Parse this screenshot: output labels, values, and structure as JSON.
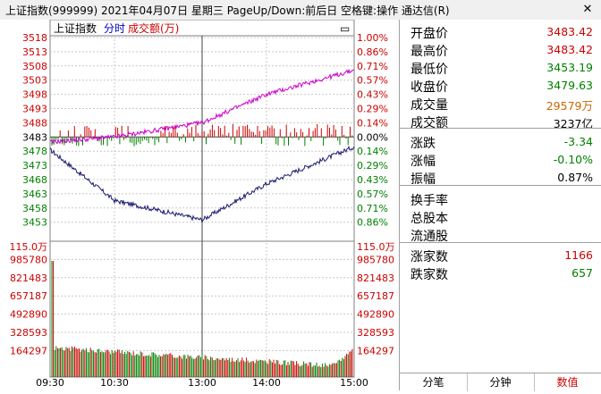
{
  "window": {
    "title": "上证指数(999999)  2021年04月07日 星期三 PageUp/Down:前后日 空格键:操作 通达信(R)",
    "close_label": "✕"
  },
  "chart": {
    "legend": {
      "index_name": "上证指数",
      "mode": "分时",
      "volume_label": "成交额(万)"
    },
    "legend_colors": {
      "index_name": "#000000",
      "mode": "#0000cc",
      "volume_label": "#cc0000"
    },
    "legend_button": "▭",
    "price_ticks": [
      "3518",
      "3513",
      "3508",
      "3503",
      "3498",
      "3493",
      "3488",
      "3483",
      "3478",
      "3473",
      "3468",
      "3463",
      "3458",
      "3453"
    ],
    "pct_ticks": [
      "1.00%",
      "0.86%",
      "0.71%",
      "0.57%",
      "0.43%",
      "0.29%",
      "0.14%",
      "0.00%",
      "0.14%",
      "0.29%",
      "0.43%",
      "0.57%",
      "0.71%",
      "0.86%"
    ],
    "volume_ticks": [
      "115.0万",
      "985780",
      "821483",
      "657187",
      "492890",
      "328593",
      "164297"
    ],
    "time_ticks": [
      "09:30",
      "10:30",
      "13:00",
      "14:00",
      "15:00"
    ],
    "prev_close": 3483,
    "colors": {
      "up": "#cc0000",
      "down": "#008000",
      "flat": "#000000",
      "price_line": "#1a1a6e",
      "avg_line": "#cc00cc",
      "grid": "#c8c8c8"
    }
  },
  "chart_data": {
    "type": "line",
    "x": [
      "09:30",
      "10:30",
      "13:00",
      "14:00",
      "15:00"
    ],
    "ylim": [
      3453,
      3518
    ],
    "series": [
      {
        "values": [
          3478.5,
          3460.6,
          3453.8,
          3466.5,
          3479.6
        ]
      },
      {
        "values": [
          3481.2,
          3483.0,
          3488.0,
          3498.0,
          3506.5
        ]
      }
    ]
  },
  "panel": {
    "rows": [
      {
        "label": "开盘价",
        "value": "3483.42",
        "color": "#cc0000"
      },
      {
        "label": "最高价",
        "value": "3483.42",
        "color": "#cc0000"
      },
      {
        "label": "最低价",
        "value": "3453.19",
        "color": "#008000"
      },
      {
        "label": "收盘价",
        "value": "3479.63",
        "color": "#008000"
      },
      {
        "label": "成交量",
        "value": "29579万",
        "color": "#cc6600"
      },
      {
        "label": "成交额",
        "value": "3237亿",
        "color": "#000000"
      },
      {
        "label": "涨跌",
        "value": "-3.34",
        "color": "#008000"
      },
      {
        "label": "涨幅",
        "value": "-0.10%",
        "color": "#008000"
      },
      {
        "label": "振幅",
        "value": "0.87%",
        "color": "#000000"
      },
      {
        "label": "换手率",
        "value": "",
        "color": "#000000"
      },
      {
        "label": "总股本",
        "value": "",
        "color": "#000000"
      },
      {
        "label": "流通股",
        "value": "",
        "color": "#000000"
      },
      {
        "label": "涨家数",
        "value": "1166",
        "color": "#cc0000"
      },
      {
        "label": "跌家数",
        "value": "657",
        "color": "#008000"
      }
    ],
    "tabs": [
      {
        "label": "分笔",
        "color": "#000000"
      },
      {
        "label": "分钟",
        "color": "#000000"
      },
      {
        "label": "数值",
        "color": "#cc0000"
      }
    ]
  }
}
